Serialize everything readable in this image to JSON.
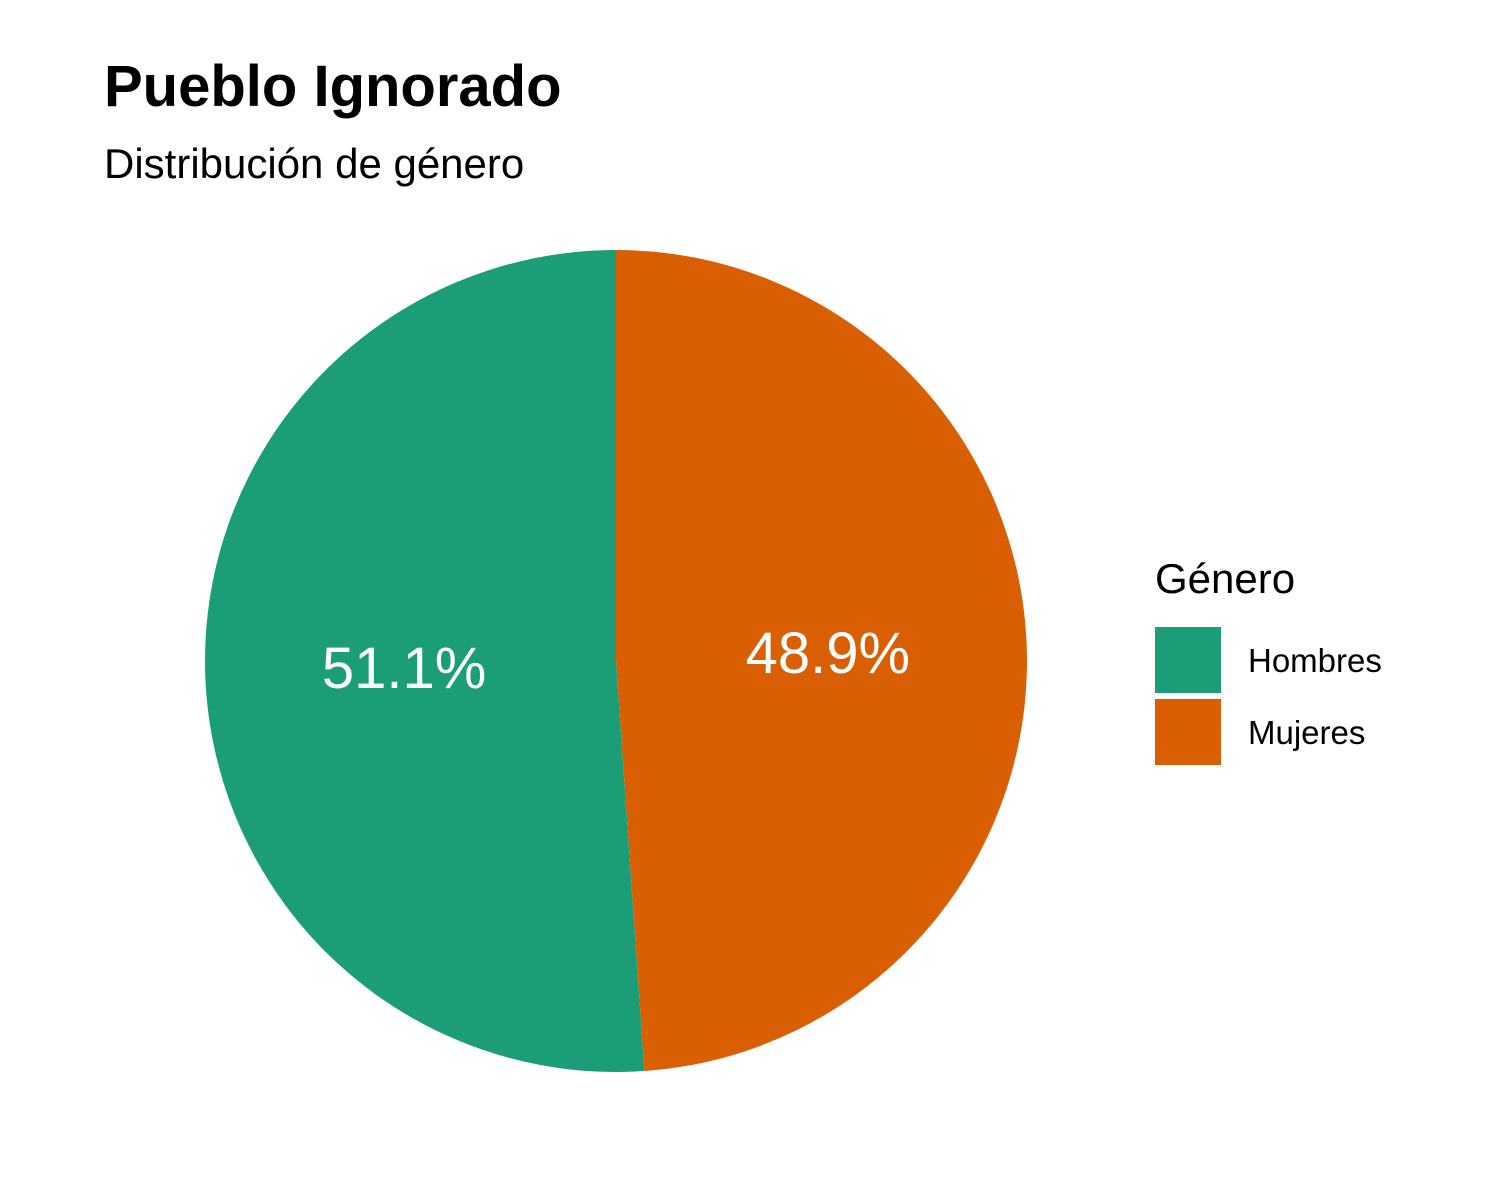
{
  "title": "Pueblo Ignorado",
  "subtitle": "Distribución de género",
  "legend": {
    "title": "Género",
    "items": [
      {
        "label": "Hombres",
        "color": "#1B9E77"
      },
      {
        "label": "Mujeres",
        "color": "#D95F02"
      }
    ]
  },
  "chart_data": {
    "type": "pie",
    "title": "Pueblo Ignorado",
    "subtitle": "Distribución de género",
    "legend_title": "Género",
    "legend_placement": "right",
    "start": "top, clockwise from 12 o'clock",
    "categories": [
      "Mujeres",
      "Hombres"
    ],
    "values": [
      48.9,
      51.1
    ],
    "labels": [
      "48.9%",
      "51.1%"
    ],
    "colors": [
      "#D95F02",
      "#1B9E77"
    ],
    "label_color": "#ffffff"
  }
}
